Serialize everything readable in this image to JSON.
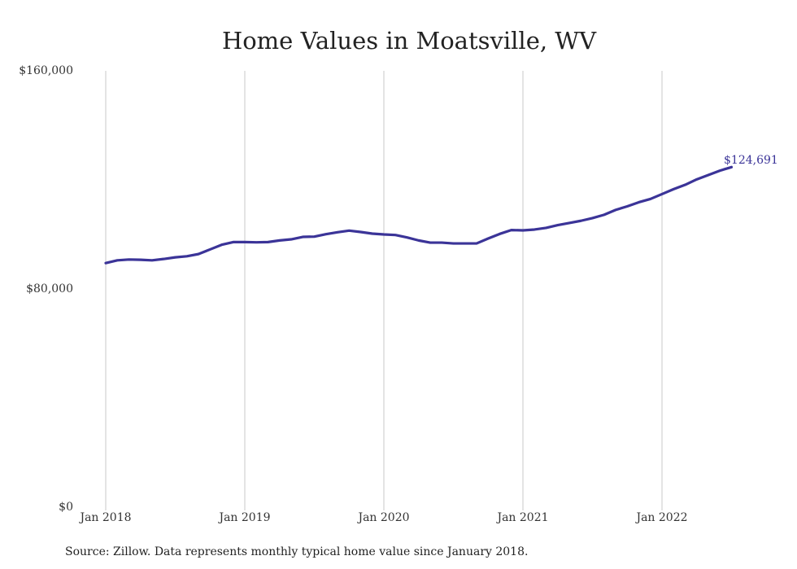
{
  "chart_data": {
    "type": "line",
    "title": "Home Values in Moatsville, WV",
    "source": "Source: Zillow. Data represents monthly typical home value since January 2018.",
    "xlabel": "",
    "ylabel": "",
    "ylim": [
      0,
      160000
    ],
    "yticks": [
      "$0",
      "$80,000",
      "$160,000"
    ],
    "ytick_values": [
      0,
      80000,
      160000
    ],
    "xticks": [
      "Jan 2018",
      "Jan 2019",
      "Jan 2020",
      "Jan 2021",
      "Jan 2022"
    ],
    "grid": "vertical",
    "line_color": "#3b3498",
    "end_label": "$124,691",
    "series": [
      {
        "values": [
          89500,
          90500,
          90800,
          90700,
          90500,
          91000,
          91600,
          92000,
          92800,
          94500,
          96200,
          97200,
          97200,
          97100,
          97200,
          97800,
          98200,
          99100,
          99200,
          100100,
          100800,
          101400,
          100900,
          100300,
          100000,
          99800,
          98900,
          97800,
          97000,
          97000,
          96700,
          96700,
          96700,
          98500,
          100200,
          101600,
          101500,
          101800,
          102400,
          103400,
          104200,
          105000,
          106000,
          107200,
          109000,
          110300,
          111800,
          113000,
          114800,
          116600,
          118200,
          120200,
          121800,
          123400,
          124691
        ]
      }
    ]
  }
}
